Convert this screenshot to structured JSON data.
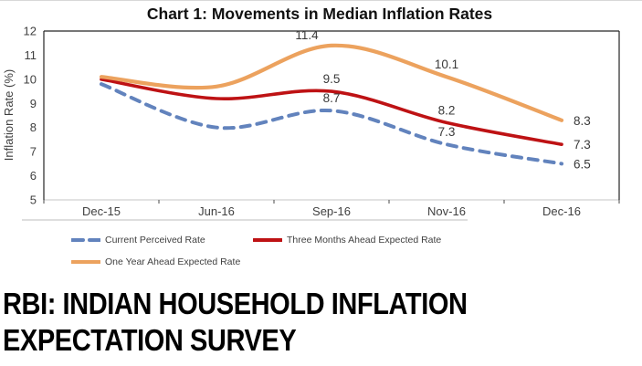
{
  "chart_data": {
    "type": "line",
    "title": "Chart 1: Movements in Median Inflation Rates",
    "categories": [
      "Dec-15",
      "Jun-16",
      "Sep-16",
      "Nov-16",
      "Dec-16"
    ],
    "series": [
      {
        "name": "Current Perceived Rate",
        "color": "#6283BD",
        "style": "dashed",
        "values": [
          9.8,
          8.0,
          8.7,
          7.3,
          6.5
        ],
        "point_labels": [
          null,
          null,
          "8.7",
          "7.3",
          "6.5"
        ]
      },
      {
        "name": "Three Months Ahead Expected Rate",
        "color": "#BE1214",
        "style": "solid",
        "values": [
          10.0,
          9.2,
          9.5,
          8.2,
          7.3
        ],
        "point_labels": [
          null,
          null,
          "9.5",
          "8.2",
          "7.3"
        ]
      },
      {
        "name": "One Year Ahead Expected Rate",
        "color": "#ECA25E",
        "style": "solid",
        "values": [
          10.1,
          9.7,
          11.4,
          10.1,
          8.3
        ],
        "point_labels": [
          null,
          null,
          "11.4",
          "10.1",
          "8.3"
        ]
      }
    ],
    "xlabel": "",
    "ylabel": "Inflation Rate (%)",
    "ylim": [
      5,
      12
    ],
    "yticks": [
      5,
      6,
      7,
      8,
      9,
      10,
      11,
      12
    ],
    "grid": false,
    "smooth": true,
    "legend_position": "bottom"
  },
  "footer": {
    "line1": "RBI: INDIAN HOUSEHOLD INFLATION",
    "line2": "EXPECTATION SURVEY"
  }
}
